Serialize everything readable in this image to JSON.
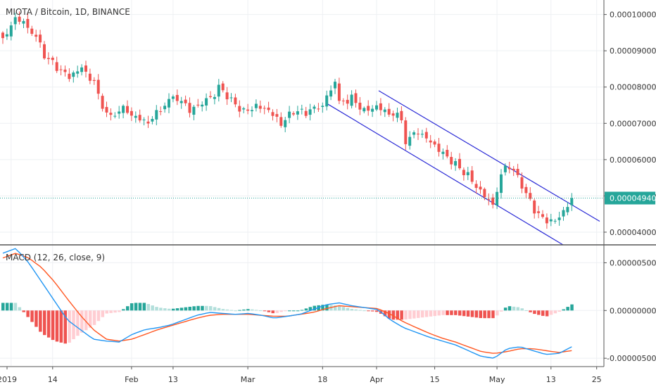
{
  "header": {
    "title": "MIOTA / Bitcoin, 1D, BINANCE",
    "indicator_label": "MACD (12, 26, close, 9)"
  },
  "colors": {
    "up": "#26a69a",
    "down": "#ef5350",
    "channel": "#2a2ad6",
    "price_line": "#26a69a",
    "macd_line": "#2196f3",
    "signal_line": "#ff5722",
    "grid": "#eef0f3",
    "axis_border": "#555555",
    "hist_up_strong": "#26a69a",
    "hist_up_weak": "#b2dfdb",
    "hist_down_strong": "#ef5350",
    "hist_down_weak": "#ffcdd2"
  },
  "current_price": {
    "value": 4.94e-05,
    "label": "0.00004940"
  },
  "chart_data": [
    {
      "type": "candlestick",
      "title": "MIOTA / Bitcoin, 1D, BINANCE",
      "x_ticks": [
        "2019",
        "14",
        "Feb",
        "13",
        "Mar",
        "18",
        "Apr",
        "15",
        "May",
        "13",
        "25"
      ],
      "y_ticks": [
        "0.00004000",
        "0.00005000",
        "0.00006000",
        "0.00007000",
        "0.00008000",
        "0.00009000",
        "0.00010000"
      ],
      "ylim": [
        3.65e-05,
        0.000104
      ],
      "anchors": [
        9.35e-05,
        0.0001,
        9.75e-05,
        8.9e-05,
        8.5e-05,
        8.2e-05,
        8.45e-05,
        8.05e-05,
        7.2e-05,
        7.45e-05,
        7.25e-05,
        7.1e-05,
        7.45e-05,
        7.7e-05,
        7.3e-05,
        7.45e-05,
        7.95e-05,
        7.6e-05,
        7.35e-05,
        7.55e-05,
        7.45e-05,
        7.05e-05,
        7.35e-05,
        7.25e-05,
        7.45e-05,
        8.05e-05,
        7.5e-05,
        7.7e-05,
        7.4e-05,
        7.55e-05,
        7.35e-05,
        7.2e-05,
        6.5e-05,
        6.7e-05,
        6.4e-05,
        6.1e-05,
        5.85e-05,
        5.6e-05,
        5.2e-05,
        4.85e-05,
        5.95e-05,
        5.3e-05,
        4.55e-05,
        4.2e-05,
        4.3e-05,
        4.94e-05
      ],
      "segments": [
        3,
        3,
        4,
        3,
        3,
        3,
        3,
        3,
        4,
        3,
        3,
        3,
        4,
        3,
        3,
        4,
        3,
        3,
        3,
        3,
        3,
        3,
        3,
        4,
        3,
        1,
        3,
        3,
        3,
        3,
        3,
        1,
        3,
        3,
        3,
        3,
        3,
        3,
        3,
        3,
        4,
        3,
        3,
        3,
        3
      ],
      "channel_upper": [
        [
          7.9e-05,
          4.3e-05
        ],
        [
          0.000538,
          0.000852
        ]
      ],
      "channel_lower": [
        [
          7.55e-05,
          3.65e-05
        ],
        [
          0.000464,
          0.0008
        ]
      ]
    },
    {
      "type": "macd",
      "title": "MACD (12, 26, close, 9)",
      "y_ticks": [
        "0.00000500",
        "0.00000000",
        "-0.00000500"
      ],
      "ylim": [
        -5.8e-06,
        6.8e-06
      ],
      "macd_anchors": [
        6e-06,
        6.5e-06,
        5e-06,
        3e-06,
        1e-06,
        -1e-06,
        -2e-06,
        -3e-06,
        -3.2e-06,
        -3.3e-06,
        -2.5e-06,
        -2e-06,
        -1.8e-06,
        -1.5e-06,
        -1e-06,
        -5e-07,
        -2e-07,
        -3e-07,
        -4e-07,
        -3e-07,
        -5e-07,
        -8e-07,
        -6e-07,
        -4e-07,
        1e-07,
        6e-07,
        8e-07,
        5e-07,
        3e-07,
        1e-07,
        -1e-06,
        -1.8e-06,
        -2.3e-06,
        -2.8e-06,
        -3.2e-06,
        -3.6e-06,
        -4.2e-06,
        -4.8e-06,
        -5e-06,
        -4e-06,
        -3.8e-06,
        -4.2e-06,
        -4.6e-06,
        -4.5e-06,
        -3.8e-06
      ],
      "signal_anchors": [
        5.5e-06,
        6e-06,
        5.5e-06,
        4.5e-06,
        3e-06,
        1.2e-06,
        -5e-07,
        -2e-06,
        -3e-06,
        -3.2e-06,
        -3e-06,
        -2.5e-06,
        -2e-06,
        -1.6e-06,
        -1.2e-06,
        -8e-07,
        -5e-07,
        -4e-07,
        -4e-07,
        -4e-07,
        -5e-07,
        -6e-07,
        -6e-07,
        -4e-07,
        -2e-07,
        2e-07,
        5e-07,
        4e-07,
        3e-07,
        2e-07,
        -4e-07,
        -1.2e-06,
        -1.8e-06,
        -2.4e-06,
        -2.9e-06,
        -3.3e-06,
        -3.8e-06,
        -4.3e-06,
        -4.5e-06,
        -4.3e-06,
        -4e-06,
        -4e-06,
        -4.2e-06,
        -4.4e-06,
        -4.2e-06
      ]
    }
  ]
}
